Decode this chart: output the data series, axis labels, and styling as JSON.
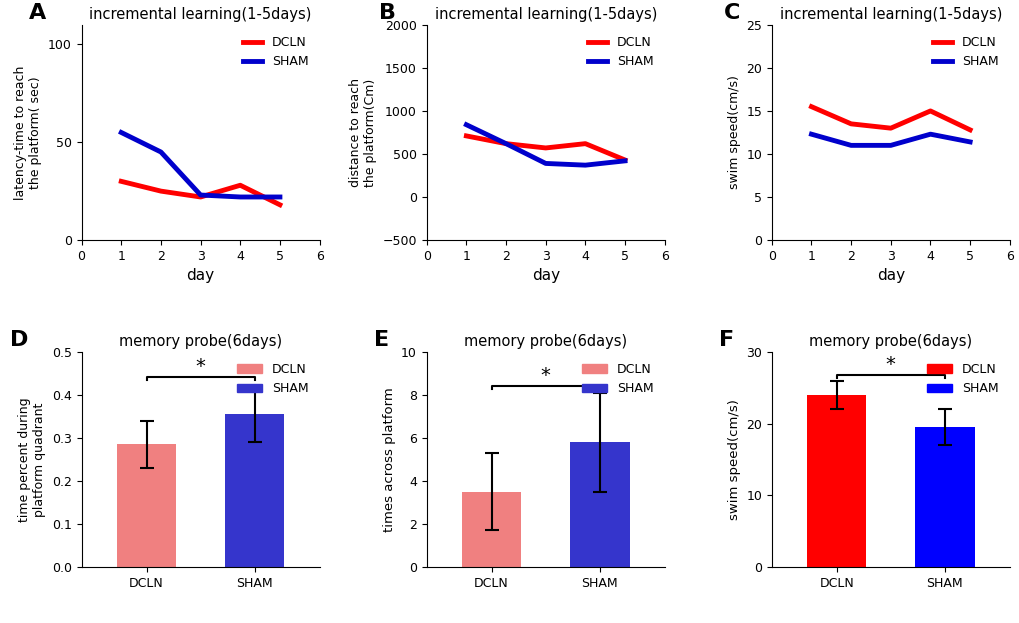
{
  "A_title": "incremental learning(1-5days)",
  "A_xlabel": "day",
  "A_ylabel": "latency-time to reach\nthe platform( sec)",
  "A_xlim": [
    0,
    6
  ],
  "A_ylim": [
    0,
    110
  ],
  "A_yticks": [
    0,
    50,
    100
  ],
  "A_xticks": [
    0,
    1,
    2,
    3,
    4,
    5,
    6
  ],
  "A_days": [
    1,
    2,
    3,
    4,
    5
  ],
  "A_DCLN": [
    30,
    25,
    22,
    28,
    18
  ],
  "A_SHAM": [
    55,
    45,
    23,
    22,
    22
  ],
  "B_title": "incremental learning(1-5days)",
  "B_xlabel": "day",
  "B_ylabel": "distance to reach\nthe platform(Cm)",
  "B_xlim": [
    0,
    6
  ],
  "B_ylim": [
    -500,
    2000
  ],
  "B_yticks": [
    -500,
    0,
    500,
    1000,
    1500,
    2000
  ],
  "B_xticks": [
    0,
    1,
    2,
    3,
    4,
    5,
    6
  ],
  "B_days": [
    1,
    2,
    3,
    4,
    5
  ],
  "B_DCLN": [
    710,
    620,
    570,
    620,
    430
  ],
  "B_SHAM": [
    840,
    620,
    390,
    370,
    420
  ],
  "C_title": "incremental learning(1-5days)",
  "C_xlabel": "day",
  "C_ylabel": "swim speed(cm/s)",
  "C_xlim": [
    0,
    6
  ],
  "C_ylim": [
    0,
    25
  ],
  "C_yticks": [
    0,
    5,
    10,
    15,
    20,
    25
  ],
  "C_xticks": [
    0,
    1,
    2,
    3,
    4,
    5,
    6
  ],
  "C_days": [
    1,
    2,
    3,
    4,
    5
  ],
  "C_DCLN": [
    15.5,
    13.5,
    13.0,
    15.0,
    12.8
  ],
  "C_SHAM": [
    12.3,
    11.0,
    11.0,
    12.3,
    11.4
  ],
  "D_title": "memory probe(6days)",
  "D_xlabel_DCLN": "DCLN",
  "D_xlabel_SHAM": "SHAM",
  "D_ylabel": "time percent during\nplatform quadrant",
  "D_ylim": [
    0,
    0.5
  ],
  "D_yticks": [
    0.0,
    0.1,
    0.2,
    0.3,
    0.4,
    0.5
  ],
  "D_DCLN_val": 0.285,
  "D_SHAM_val": 0.355,
  "D_DCLN_err": 0.055,
  "D_SHAM_err": 0.065,
  "D_DCLN_color": "#F08080",
  "D_SHAM_color": "#3535CC",
  "E_title": "memory probe(6days)",
  "E_xlabel_DCLN": "DCLN",
  "E_xlabel_SHAM": "SHAM",
  "E_ylabel": "times across platform",
  "E_ylim": [
    0,
    10
  ],
  "E_yticks": [
    0,
    2,
    4,
    6,
    8,
    10
  ],
  "E_DCLN_val": 3.5,
  "E_SHAM_val": 5.8,
  "E_DCLN_err": 1.8,
  "E_SHAM_err": 2.3,
  "E_DCLN_color": "#F08080",
  "E_SHAM_color": "#3535CC",
  "F_title": "memory probe(6days)",
  "F_xlabel_DCLN": "DCLN",
  "F_xlabel_SHAM": "SHAM",
  "F_ylabel": "swim speed(cm/s)",
  "F_ylim": [
    0,
    30
  ],
  "F_yticks": [
    0,
    10,
    20,
    30
  ],
  "F_DCLN_val": 24.0,
  "F_SHAM_val": 19.5,
  "F_DCLN_err": 2.0,
  "F_SHAM_err": 2.5,
  "F_DCLN_color": "#FF0000",
  "F_SHAM_color": "#0000FF",
  "DCLN_color": "#FF0000",
  "SHAM_color": "#0000CC",
  "line_width": 3.5,
  "bar_width": 0.55
}
